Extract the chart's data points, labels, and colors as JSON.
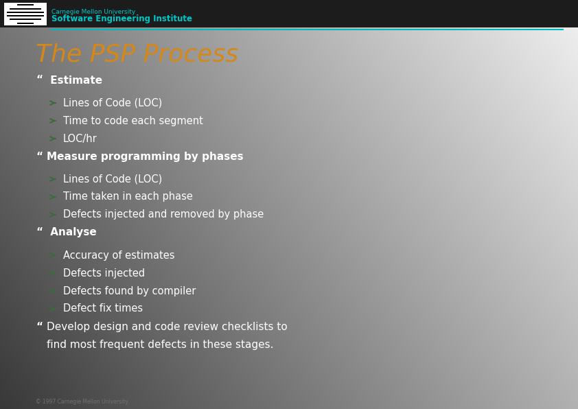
{
  "bg_color_tl": "#3a3a3a",
  "bg_color_bl": "#808080",
  "bg_color_tr": "#c0c0c0",
  "bg_color_br": "#f0f0f0",
  "header_bg": "#1a1a1a",
  "header_line_color": "#00b8b8",
  "cmu_name": "Carnegie Mellon University",
  "sei_name": "Software Engineering Institute",
  "cmu_color": "#00c8c8",
  "sei_color": "#00c8c8",
  "title": "The PSP Process",
  "title_color": "#d4881a",
  "bullet_color": "#ffffff",
  "sub_bullet_color": "#ffffff",
  "bullet_marker": "“",
  "sub_marker_color": "#3a6b3a",
  "copyright": "© 1997 Carnegie Mellon University",
  "copyright_color": "#707070",
  "items": [
    {
      "level": 0,
      "text": " Estimate",
      "bold": true
    },
    {
      "level": 1,
      "text": "Lines of Code (LOC)"
    },
    {
      "level": 1,
      "text": "Time to code each segment"
    },
    {
      "level": 1,
      "text": "LOC/hr"
    },
    {
      "level": 0,
      "text": "Measure programming by phases",
      "bold": true
    },
    {
      "level": 1,
      "text": "Lines of Code (LOC)"
    },
    {
      "level": 1,
      "text": "Time taken in each phase"
    },
    {
      "level": 1,
      "text": "Defects injected and removed by phase"
    },
    {
      "level": 0,
      "text": " Analyse",
      "bold": true
    },
    {
      "level": 1,
      "text": "Accuracy of estimates"
    },
    {
      "level": 1,
      "text": "Defects injected"
    },
    {
      "level": 1,
      "text": "Defects found by compiler"
    },
    {
      "level": 1,
      "text": "Defect fix times"
    },
    {
      "level": 0,
      "text": "Develop design and code review checklists to\n    find most frequent defects in these stages.",
      "bold": false
    }
  ],
  "figwidth": 8.42,
  "figheight": 5.96,
  "dpi": 100
}
